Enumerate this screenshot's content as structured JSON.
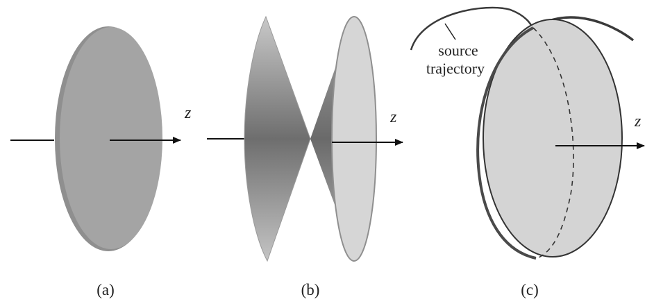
{
  "panels": [
    {
      "caption": "(a)",
      "axis_label": "z"
    },
    {
      "caption": "(b)",
      "axis_label": "z"
    },
    {
      "caption": "(c)",
      "axis_label": "z"
    }
  ],
  "annotation": {
    "line1": "source",
    "line2": "trajectory"
  },
  "colors": {
    "disk_fill": "#a4a4a4",
    "disk_edge": "#8a8a8a",
    "cone_dark": "#6e6e6e",
    "cone_light": "#d6d6d6",
    "sphere_fill": "#d4d4d4",
    "stroke": "#2a2a2a"
  }
}
